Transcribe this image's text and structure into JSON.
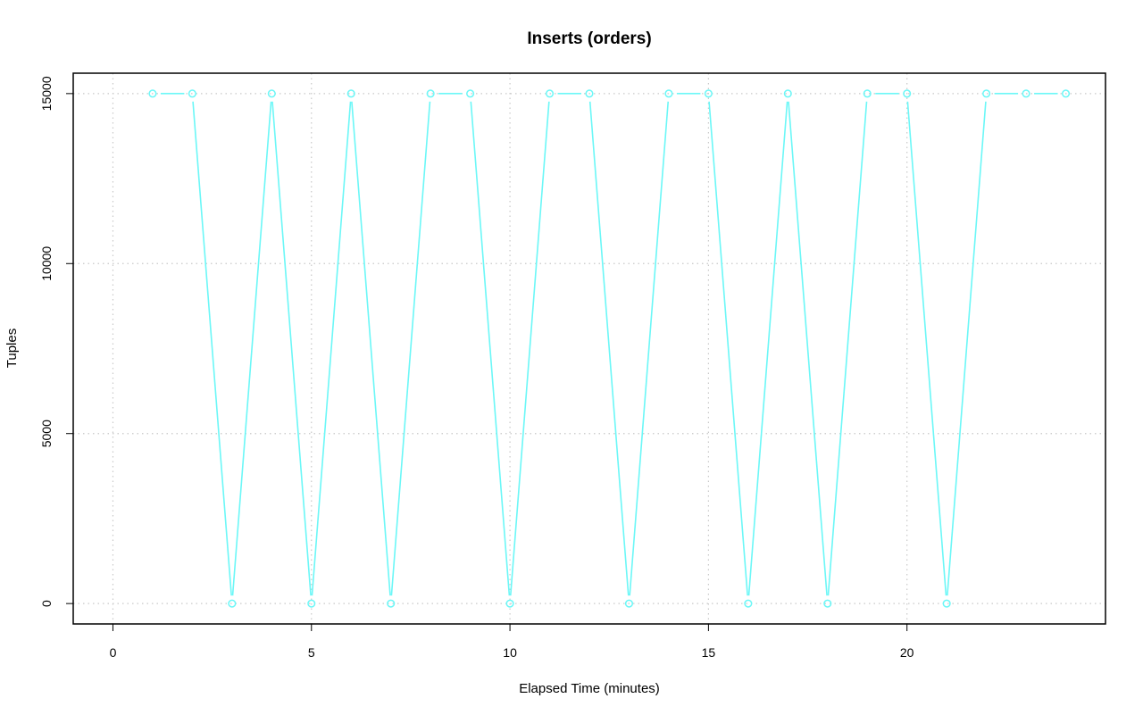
{
  "chart_data": {
    "type": "line",
    "title": "Inserts (orders)",
    "xlabel": "Elapsed Time (minutes)",
    "ylabel": "Tuples",
    "xlim": [
      -1,
      25
    ],
    "ylim": [
      -600,
      15600
    ],
    "x_ticks": [
      0,
      5,
      10,
      15,
      20
    ],
    "y_ticks": [
      0,
      5000,
      10000,
      15000
    ],
    "grid": true,
    "series_color": "#6cf7f7",
    "series": [
      {
        "x": [
          1,
          2,
          3,
          4,
          5,
          6,
          7,
          8,
          9,
          10,
          11,
          12,
          13,
          14,
          15,
          16,
          17,
          18,
          19,
          20,
          21,
          22,
          23,
          24
        ],
        "values": [
          15000,
          15000,
          0,
          15000,
          0,
          15000,
          0,
          15000,
          15000,
          0,
          15000,
          15000,
          0,
          15000,
          15000,
          0,
          15000,
          0,
          15000,
          15000,
          0,
          15000,
          15000,
          15000
        ]
      }
    ]
  }
}
